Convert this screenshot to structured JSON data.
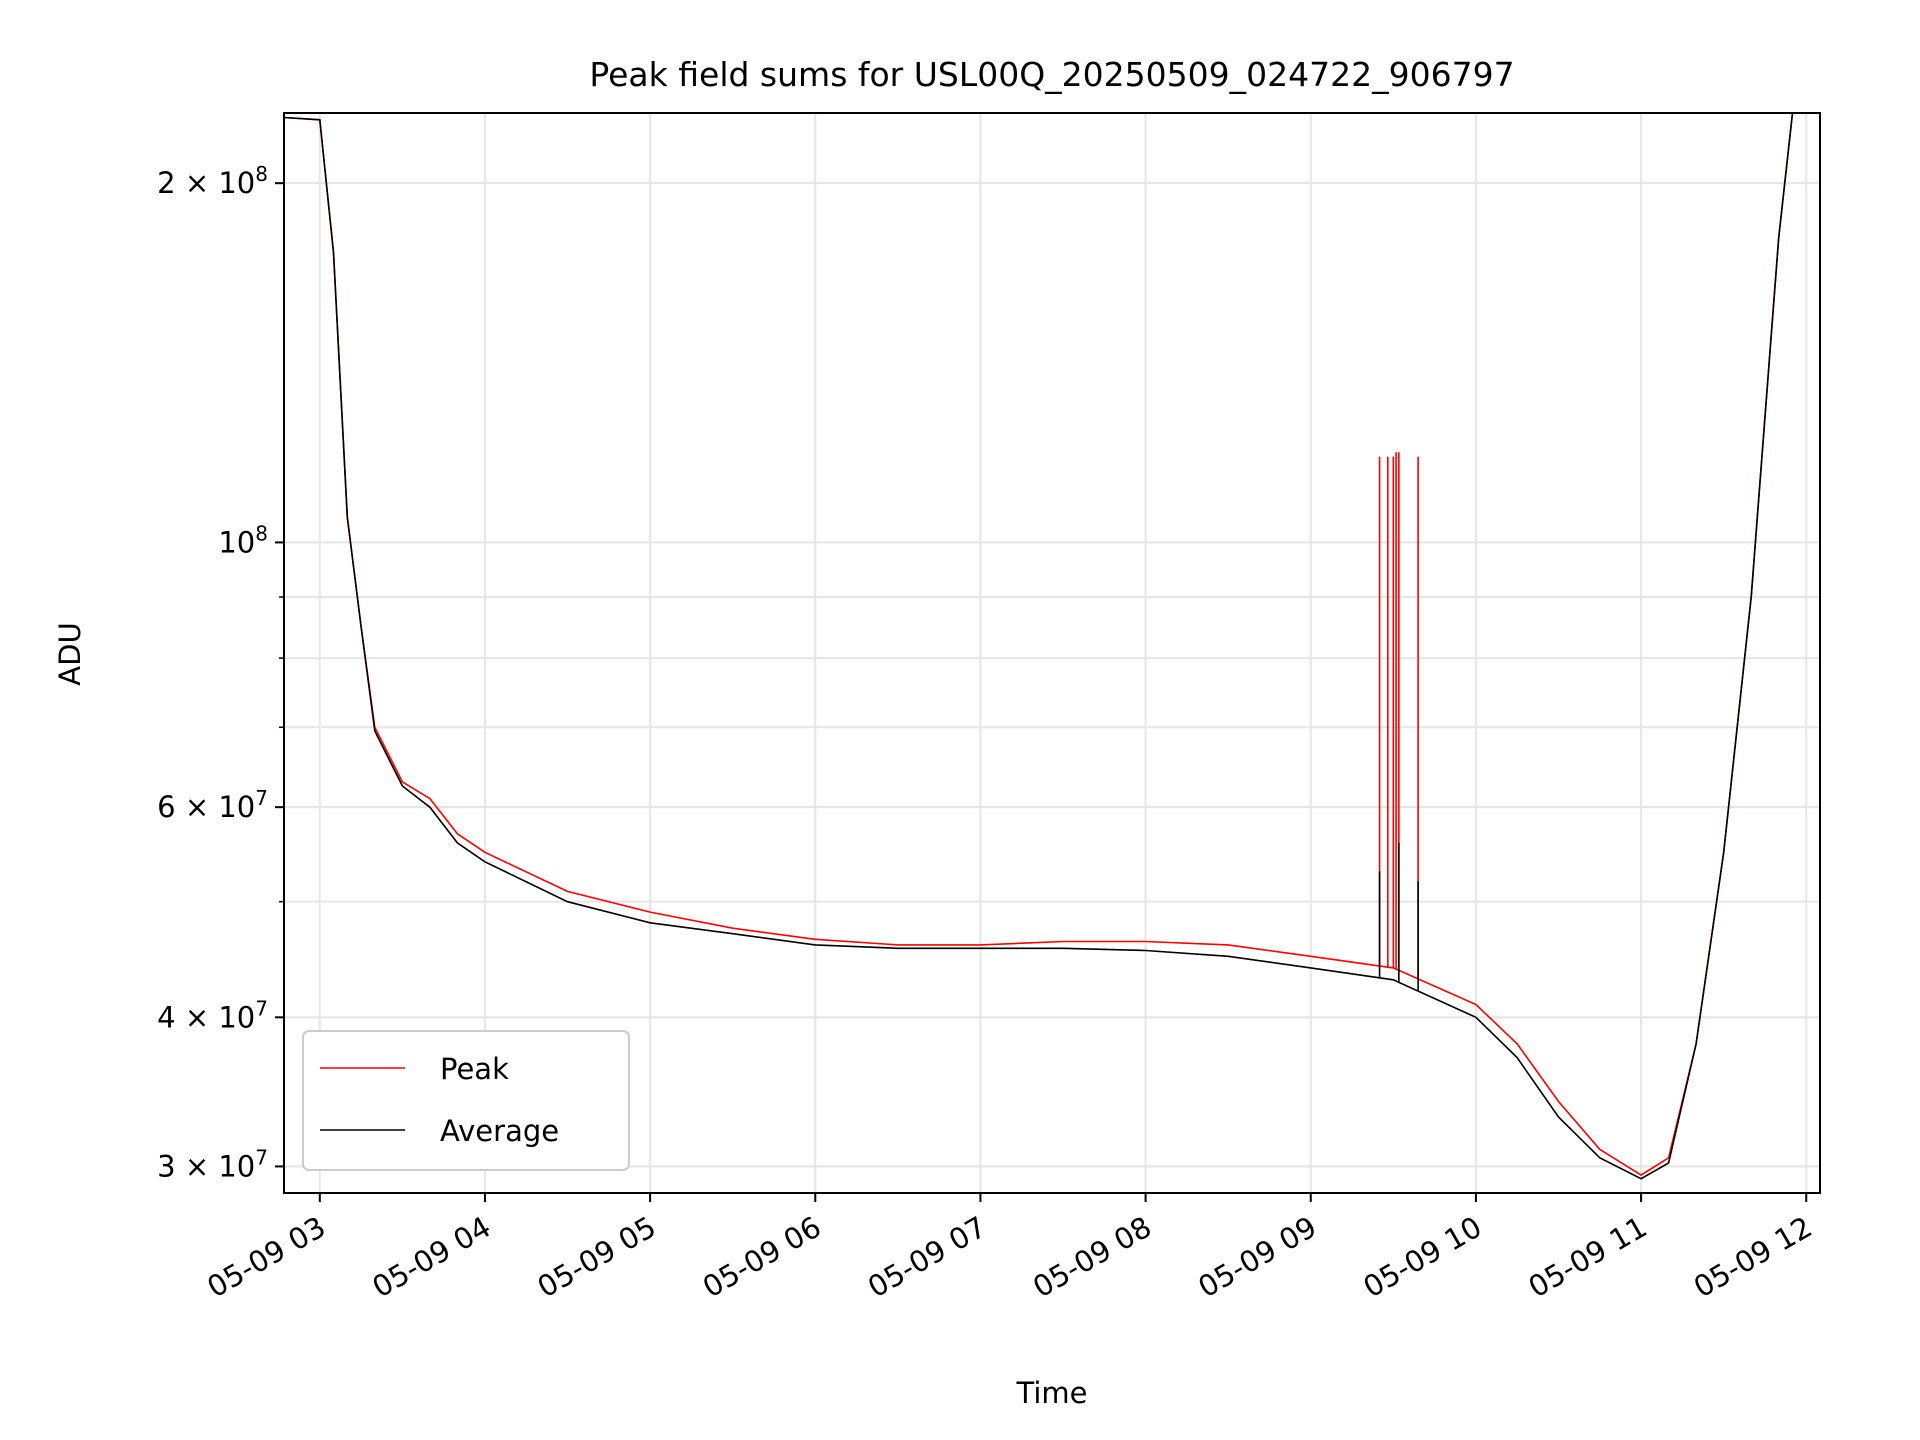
{
  "chart_data": {
    "type": "line",
    "title": "Peak field sums for USL00Q_20250509_024722_906797",
    "xlabel": "Time",
    "ylabel": "ADU",
    "y_scale": "log",
    "grid": true,
    "legend_position": "lower-left",
    "xlim": [
      "2025-05-09 02:47",
      "2025-05-09 12:05"
    ],
    "ylim": [
      28500000,
      229000000
    ],
    "x_ticks": [
      "05-09 03",
      "05-09 04",
      "05-09 05",
      "05-09 06",
      "05-09 07",
      "05-09 08",
      "05-09 09",
      "05-09 10",
      "05-09 11",
      "05-09 12"
    ],
    "y_ticks": [
      {
        "value": 200000000,
        "mantissa": "2",
        "exponent": "8"
      },
      {
        "value": 100000000,
        "mantissa": "",
        "exponent": "8"
      },
      {
        "value": 60000000,
        "mantissa": "6",
        "exponent": "7"
      },
      {
        "value": 40000000,
        "mantissa": "4",
        "exponent": "7"
      },
      {
        "value": 30000000,
        "mantissa": "3",
        "exponent": "7"
      }
    ],
    "series": [
      {
        "name": "Peak",
        "color": "#ff0000",
        "points": [
          [
            "2025-05-09 02:47",
            227000000
          ],
          [
            "2025-05-09 03:00",
            226000000
          ],
          [
            "2025-05-09 03:05",
            175000000
          ],
          [
            "2025-05-09 03:10",
            105000000
          ],
          [
            "2025-05-09 03:15",
            85000000
          ],
          [
            "2025-05-09 03:20",
            70000000
          ],
          [
            "2025-05-09 03:30",
            63000000
          ],
          [
            "2025-05-09 03:40",
            61000000
          ],
          [
            "2025-05-09 03:50",
            57000000
          ],
          [
            "2025-05-09 04:00",
            55000000
          ],
          [
            "2025-05-09 04:30",
            51000000
          ],
          [
            "2025-05-09 05:00",
            49000000
          ],
          [
            "2025-05-09 05:30",
            47500000
          ],
          [
            "2025-05-09 06:00",
            46500000
          ],
          [
            "2025-05-09 06:30",
            46000000
          ],
          [
            "2025-05-09 07:00",
            46000000
          ],
          [
            "2025-05-09 07:30",
            46300000
          ],
          [
            "2025-05-09 08:00",
            46300000
          ],
          [
            "2025-05-09 08:30",
            46000000
          ],
          [
            "2025-05-09 09:00",
            45000000
          ],
          [
            "2025-05-09 09:30",
            44000000
          ],
          [
            "2025-05-09 10:00",
            41000000
          ],
          [
            "2025-05-09 10:15",
            38000000
          ],
          [
            "2025-05-09 10:30",
            34000000
          ],
          [
            "2025-05-09 10:45",
            31000000
          ],
          [
            "2025-05-09 11:00",
            29500000
          ],
          [
            "2025-05-09 11:10",
            30500000
          ],
          [
            "2025-05-09 11:20",
            38000000
          ],
          [
            "2025-05-09 11:30",
            55000000
          ],
          [
            "2025-05-09 11:40",
            90000000
          ],
          [
            "2025-05-09 11:50",
            180000000
          ],
          [
            "2025-05-09 11:55",
            229000000
          ]
        ],
        "spikes": [
          [
            "2025-05-09 09:25",
            118000000
          ],
          [
            "2025-05-09 09:28",
            118000000
          ],
          [
            "2025-05-09 09:30",
            118000000
          ],
          [
            "2025-05-09 09:31",
            119000000
          ],
          [
            "2025-05-09 09:32",
            119000000
          ],
          [
            "2025-05-09 09:39",
            118000000
          ]
        ]
      },
      {
        "name": "Average",
        "color": "#000000",
        "points": [
          [
            "2025-05-09 02:47",
            227000000
          ],
          [
            "2025-05-09 03:00",
            226000000
          ],
          [
            "2025-05-09 03:05",
            175000000
          ],
          [
            "2025-05-09 03:10",
            105000000
          ],
          [
            "2025-05-09 03:15",
            85000000
          ],
          [
            "2025-05-09 03:20",
            69500000
          ],
          [
            "2025-05-09 03:30",
            62500000
          ],
          [
            "2025-05-09 03:40",
            60000000
          ],
          [
            "2025-05-09 03:50",
            56000000
          ],
          [
            "2025-05-09 04:00",
            54000000
          ],
          [
            "2025-05-09 04:30",
            50000000
          ],
          [
            "2025-05-09 05:00",
            48000000
          ],
          [
            "2025-05-09 05:30",
            47000000
          ],
          [
            "2025-05-09 06:00",
            46000000
          ],
          [
            "2025-05-09 06:30",
            45700000
          ],
          [
            "2025-05-09 07:00",
            45700000
          ],
          [
            "2025-05-09 07:30",
            45700000
          ],
          [
            "2025-05-09 08:00",
            45500000
          ],
          [
            "2025-05-09 08:30",
            45000000
          ],
          [
            "2025-05-09 09:00",
            44000000
          ],
          [
            "2025-05-09 09:30",
            43000000
          ],
          [
            "2025-05-09 10:00",
            40000000
          ],
          [
            "2025-05-09 10:15",
            37000000
          ],
          [
            "2025-05-09 10:30",
            33000000
          ],
          [
            "2025-05-09 10:45",
            30500000
          ],
          [
            "2025-05-09 11:00",
            29300000
          ],
          [
            "2025-05-09 11:10",
            30200000
          ],
          [
            "2025-05-09 11:20",
            38000000
          ],
          [
            "2025-05-09 11:30",
            55000000
          ],
          [
            "2025-05-09 11:40",
            90000000
          ],
          [
            "2025-05-09 11:50",
            180000000
          ],
          [
            "2025-05-09 11:55",
            229000000
          ]
        ],
        "spikes": [
          [
            "2025-05-09 09:25",
            53000000
          ],
          [
            "2025-05-09 09:32",
            56000000
          ],
          [
            "2025-05-09 09:39",
            52000000
          ]
        ]
      }
    ]
  }
}
